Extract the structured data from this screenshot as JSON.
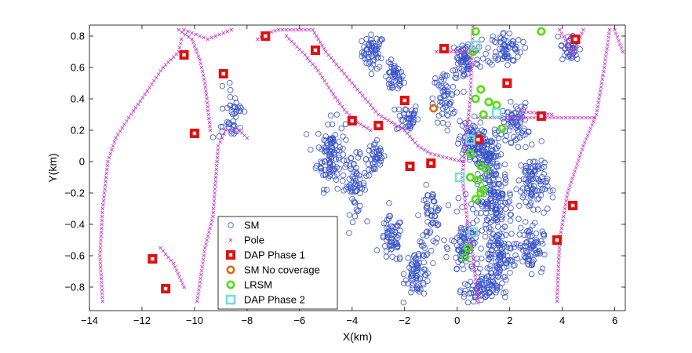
{
  "chart_data": {
    "type": "scatter",
    "title": "",
    "xlabel": "X(km)",
    "ylabel": "Y(km)",
    "xlim": [
      -14,
      6.4
    ],
    "ylim": [
      -0.95,
      0.87
    ],
    "xticks": [
      -14,
      -12,
      -10,
      -8,
      -6,
      -4,
      -2,
      0,
      2,
      4,
      6
    ],
    "yticks": [
      -0.8,
      -0.6,
      -0.4,
      -0.2,
      0,
      0.2,
      0.4,
      0.6,
      0.8
    ],
    "xtick_labels": [
      "−14",
      "−12",
      "−10",
      "−8",
      "−6",
      "−4",
      "−2",
      "0",
      "2",
      "4",
      "6"
    ],
    "ytick_labels": [
      "−0.8",
      "−0.6",
      "−0.4",
      "−0.2",
      "0",
      "0.2",
      "0.4",
      "0.6",
      "0.8"
    ],
    "grid": false,
    "legend_position": "lower-left",
    "series": [
      {
        "name": "SM",
        "marker": "circle-open",
        "color": "#3a55c8",
        "clusters": [
          {
            "cx": -3.2,
            "cy": 0.7,
            "sx": 0.35,
            "sy": 0.09,
            "n": 60
          },
          {
            "cx": -2.4,
            "cy": 0.53,
            "sx": 0.3,
            "sy": 0.08,
            "n": 45
          },
          {
            "cx": -1.9,
            "cy": 0.28,
            "sx": 0.35,
            "sy": 0.08,
            "n": 40
          },
          {
            "cx": -4.8,
            "cy": 0.05,
            "sx": 0.45,
            "sy": 0.18,
            "n": 110
          },
          {
            "cx": -3.9,
            "cy": -0.15,
            "sx": 0.35,
            "sy": 0.15,
            "n": 60
          },
          {
            "cx": -3.1,
            "cy": 0.02,
            "sx": 0.3,
            "sy": 0.1,
            "n": 45
          },
          {
            "cx": -2.5,
            "cy": -0.5,
            "sx": 0.35,
            "sy": 0.12,
            "n": 60
          },
          {
            "cx": -1.5,
            "cy": -0.7,
            "sx": 0.4,
            "sy": 0.13,
            "n": 75
          },
          {
            "cx": -1.0,
            "cy": -0.35,
            "sx": 0.35,
            "sy": 0.15,
            "n": 55
          },
          {
            "cx": -0.5,
            "cy": 0.4,
            "sx": 0.35,
            "sy": 0.15,
            "n": 55
          },
          {
            "cx": 0.3,
            "cy": 0.65,
            "sx": 0.45,
            "sy": 0.12,
            "n": 65
          },
          {
            "cx": 1.8,
            "cy": 0.72,
            "sx": 0.55,
            "sy": 0.09,
            "n": 70
          },
          {
            "cx": 0.5,
            "cy": 0.12,
            "sx": 0.4,
            "sy": 0.12,
            "n": 80
          },
          {
            "cx": 1.2,
            "cy": 0.05,
            "sx": 0.45,
            "sy": 0.12,
            "n": 90
          },
          {
            "cx": 2.2,
            "cy": 0.25,
            "sx": 0.4,
            "sy": 0.1,
            "n": 65
          },
          {
            "cx": 1.4,
            "cy": -0.25,
            "sx": 0.6,
            "sy": 0.18,
            "n": 150
          },
          {
            "cx": 2.9,
            "cy": -0.15,
            "sx": 0.45,
            "sy": 0.18,
            "n": 100
          },
          {
            "cx": 0.3,
            "cy": -0.55,
            "sx": 0.45,
            "sy": 0.16,
            "n": 90
          },
          {
            "cx": 1.6,
            "cy": -0.6,
            "sx": 0.5,
            "sy": 0.15,
            "n": 110
          },
          {
            "cx": 2.8,
            "cy": -0.55,
            "sx": 0.4,
            "sy": 0.12,
            "n": 70
          },
          {
            "cx": 0.9,
            "cy": -0.82,
            "sx": 0.55,
            "sy": 0.07,
            "n": 70
          },
          {
            "cx": 4.3,
            "cy": 0.72,
            "sx": 0.3,
            "sy": 0.08,
            "n": 40
          },
          {
            "cx": -8.5,
            "cy": 0.35,
            "sx": 0.3,
            "sy": 0.12,
            "n": 30
          },
          {
            "cx": -8.7,
            "cy": 0.2,
            "sx": 0.3,
            "sy": 0.05,
            "n": 15
          }
        ]
      },
      {
        "name": "Pole",
        "marker": "x",
        "color": "#cc44cc",
        "paths": [
          [
            [
              -13.5,
              -0.89
            ],
            [
              -13.6,
              -0.6
            ],
            [
              -13.5,
              -0.3
            ],
            [
              -13.3,
              0.0
            ],
            [
              -13.0,
              0.15
            ],
            [
              -12.5,
              0.28
            ],
            [
              -11.8,
              0.45
            ],
            [
              -11.2,
              0.6
            ],
            [
              -10.6,
              0.7
            ],
            [
              -10.5,
              0.78
            ]
          ],
          [
            [
              -10.6,
              0.84
            ],
            [
              -10.1,
              0.78
            ],
            [
              -9.8,
              0.65
            ],
            [
              -9.6,
              0.5
            ],
            [
              -9.5,
              0.35
            ],
            [
              -9.4,
              0.2
            ]
          ],
          [
            [
              -10.4,
              0.84
            ],
            [
              -9.5,
              0.78
            ],
            [
              -8.6,
              0.84
            ]
          ],
          [
            [
              -9.9,
              -0.89
            ],
            [
              -9.6,
              -0.55
            ],
            [
              -9.3,
              -0.35
            ],
            [
              -9.1,
              0.1
            ],
            [
              -8.8,
              0.2
            ],
            [
              -8.3,
              0.2
            ],
            [
              -8.0,
              0.15
            ]
          ],
          [
            [
              -11.3,
              -0.55
            ],
            [
              -10.8,
              -0.65
            ],
            [
              -10.4,
              -0.8
            ]
          ],
          [
            [
              -7.6,
              0.78
            ],
            [
              -7.2,
              0.82
            ],
            [
              -6.8,
              0.84
            ],
            [
              -5.5,
              0.84
            ],
            [
              -5.0,
              0.7
            ],
            [
              -4.5,
              0.6
            ],
            [
              -4.0,
              0.5
            ],
            [
              -3.5,
              0.4
            ],
            [
              -3.0,
              0.3
            ],
            [
              -2.5,
              0.25
            ],
            [
              -2.0,
              0.2
            ],
            [
              -1.5,
              0.1
            ],
            [
              -1.0,
              0.05
            ],
            [
              0.2,
              0.0
            ]
          ],
          [
            [
              -6.5,
              0.8
            ],
            [
              -5.8,
              0.68
            ],
            [
              -5.3,
              0.58
            ],
            [
              -4.8,
              0.45
            ],
            [
              -4.3,
              0.33
            ],
            [
              -3.8,
              0.25
            ],
            [
              -3.3,
              0.2
            ]
          ],
          [
            [
              -0.8,
              0.7
            ],
            [
              0.8,
              0.7
            ]
          ],
          [
            [
              0.6,
              0.86
            ],
            [
              0.5,
              0.4
            ],
            [
              0.3,
              0.1
            ],
            [
              0.2,
              -0.1
            ],
            [
              0.4,
              -0.4
            ],
            [
              0.6,
              -0.6
            ],
            [
              0.8,
              -0.9
            ]
          ],
          [
            [
              0.8,
              0.28
            ],
            [
              5.2,
              0.28
            ]
          ],
          [
            [
              2.4,
              0.32
            ],
            [
              3.6,
              0.3
            ]
          ],
          [
            [
              3.8,
              -0.89
            ],
            [
              3.9,
              -0.5
            ],
            [
              4.2,
              -0.2
            ],
            [
              4.8,
              0.1
            ],
            [
              5.3,
              0.3
            ],
            [
              5.6,
              0.6
            ],
            [
              5.8,
              0.84
            ]
          ],
          [
            [
              3.9,
              0.84
            ],
            [
              4.4,
              0.68
            ],
            [
              4.8,
              0.84
            ]
          ],
          [
            [
              6.0,
              0.84
            ],
            [
              6.3,
              0.7
            ]
          ]
        ]
      },
      {
        "name": "DAP Phase 1",
        "marker": "square-filled",
        "color": "#e01010",
        "points": [
          [
            -10.4,
            0.68
          ],
          [
            -8.9,
            0.56
          ],
          [
            -7.3,
            0.8
          ],
          [
            -10.0,
            0.18
          ],
          [
            -11.6,
            -0.62
          ],
          [
            -11.1,
            -0.81
          ],
          [
            -5.4,
            0.71
          ],
          [
            -4.0,
            0.26
          ],
          [
            -3.0,
            0.23
          ],
          [
            -2.0,
            0.39
          ],
          [
            -1.8,
            -0.03
          ],
          [
            -1.0,
            -0.01
          ],
          [
            -0.5,
            0.72
          ],
          [
            0.8,
            0.14
          ],
          [
            1.9,
            0.5
          ],
          [
            3.2,
            0.29
          ],
          [
            4.5,
            0.78
          ],
          [
            4.4,
            -0.28
          ],
          [
            3.8,
            -0.5
          ]
        ]
      },
      {
        "name": "SM No coverage",
        "marker": "circle-thick",
        "color": "#e06a10",
        "points": [
          [
            -0.9,
            0.34
          ]
        ]
      },
      {
        "name": "LRSM",
        "marker": "circle-thick",
        "color": "#55dd11",
        "points": [
          [
            0.7,
            0.83
          ],
          [
            0.6,
            0.7
          ],
          [
            3.2,
            0.83
          ],
          [
            0.9,
            0.46
          ],
          [
            0.7,
            0.4
          ],
          [
            1.2,
            0.38
          ],
          [
            1.5,
            0.36
          ],
          [
            1.7,
            0.21
          ],
          [
            1.0,
            0.3
          ],
          [
            0.5,
            0.05
          ],
          [
            0.9,
            -0.03
          ],
          [
            1.1,
            -0.05
          ],
          [
            0.5,
            -0.1
          ],
          [
            0.8,
            -0.12
          ],
          [
            1.0,
            -0.18
          ],
          [
            0.7,
            -0.24
          ],
          [
            0.9,
            -0.2
          ],
          [
            0.4,
            -0.55
          ],
          [
            0.3,
            -0.61
          ]
        ]
      },
      {
        "name": "DAP Phase 2",
        "marker": "square-open",
        "color": "#77dddd",
        "points": [
          [
            0.7,
            0.74
          ],
          [
            1.5,
            0.31
          ],
          [
            0.5,
            0.14
          ],
          [
            0.1,
            -0.1
          ],
          [
            0.6,
            -0.45
          ]
        ]
      }
    ]
  }
}
